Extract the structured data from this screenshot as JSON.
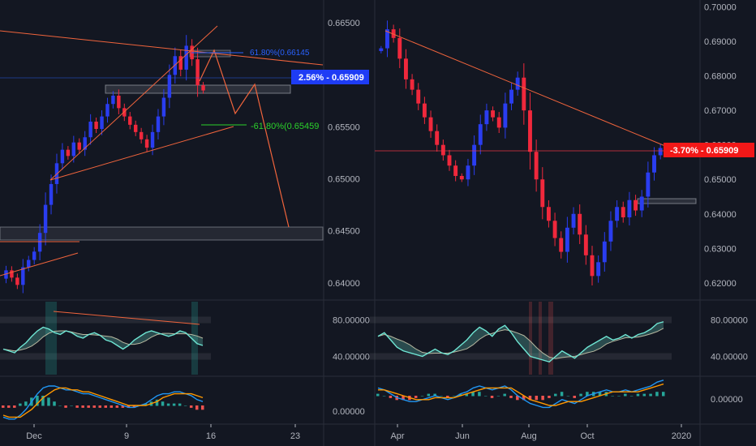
{
  "colors": {
    "background": "#131722",
    "grid": "#2a2e39",
    "axis_text": "#b2b5be",
    "candle_up": "#2a3df0",
    "candle_down": "#f0283c",
    "trendline": "#f0643c",
    "fib_blue": "#2962ff",
    "fib_green": "#2bd12b",
    "badge_blue": "#1e3cf5",
    "badge_red": "#f21818",
    "rsi_fast": "#6fe6d4",
    "rsi_slow": "#b8b8a0",
    "macd_line": "#2196f3",
    "signal_line": "#ff9800",
    "hist_up": "#26a69a",
    "hist_down": "#ef5350"
  },
  "chart_data": [
    {
      "type": "candlestick",
      "panel": "left-price",
      "x_ticks": [
        "Dec",
        "9",
        "16",
        "23"
      ],
      "y_ticks": [
        "0.66500",
        "0.66000",
        "0.65500",
        "0.65000",
        "0.64500",
        "0.64000"
      ],
      "ylim": [
        0.6385,
        0.6672
      ],
      "close_points": [
        [
          0.6412,
          0.6405,
          0.6398,
          0.6415,
          0.6422,
          0.643,
          0.6448,
          0.6475,
          0.6495,
          0.6515,
          0.6528,
          0.6522,
          0.6535,
          0.6528,
          0.654,
          0.6555,
          0.6548,
          0.656,
          0.6572,
          0.658,
          0.6568,
          0.656,
          0.6552,
          0.6545,
          0.6538,
          0.653,
          0.6545,
          0.656,
          0.6578,
          0.66,
          0.6618,
          0.6605,
          0.6628,
          0.6615,
          0.659,
          0.6585
        ]
      ],
      "annotations": [
        {
          "label": "2.56% - 0.65909",
          "style": "badge-blue"
        },
        {
          "label": "-61.80%(0.65459",
          "style": "fib-green"
        },
        {
          "label": "61.80%(0.66145",
          "style": "fib-blue"
        }
      ]
    },
    {
      "type": "candlestick",
      "panel": "right-price",
      "x_ticks": [
        "Apr",
        "Jun",
        "Aug",
        "Oct",
        "2020"
      ],
      "y_ticks": [
        "0.70000",
        "0.69000",
        "0.68000",
        "0.67000",
        "0.66000",
        "0.65000",
        "0.64000",
        "0.63000",
        "0.62000"
      ],
      "ylim": [
        0.6155,
        0.702
      ],
      "close_points": [
        [
          0.688,
          0.6935,
          0.691,
          0.685,
          0.679,
          0.676,
          0.672,
          0.668,
          0.664,
          0.66,
          0.657,
          0.654,
          0.651,
          0.65,
          0.654,
          0.66,
          0.666,
          0.67,
          0.668,
          0.665,
          0.672,
          0.676,
          0.6795,
          0.67,
          0.658,
          0.65,
          0.642,
          0.638,
          0.633,
          0.629,
          0.636,
          0.64,
          0.634,
          0.628,
          0.622,
          0.626,
          0.632,
          0.638,
          0.642,
          0.639,
          0.644,
          0.641,
          0.645,
          0.652,
          0.657,
          0.6591
        ]
      ],
      "annotations": [
        {
          "label": "-3.70% - 0.65909",
          "style": "badge-red"
        }
      ]
    },
    {
      "type": "line",
      "panel": "left-rsi",
      "y_ticks": [
        "80.00000",
        "40.00000"
      ],
      "ylim": [
        20,
        100
      ],
      "series": [
        {
          "values": [
            48,
            46,
            44,
            50,
            55,
            62,
            68,
            72,
            70,
            66,
            64,
            68,
            66,
            62,
            60,
            64,
            66,
            63,
            58,
            56,
            52,
            48,
            52,
            58,
            62,
            66,
            68,
            66,
            64,
            62,
            64,
            68,
            66,
            60,
            54,
            52
          ]
        }
      ]
    },
    {
      "type": "line",
      "panel": "right-rsi",
      "y_ticks": [
        "80.00000",
        "40.00000"
      ],
      "ylim": [
        20,
        100
      ],
      "series": [
        {
          "values": [
            62,
            66,
            58,
            50,
            46,
            44,
            42,
            40,
            44,
            48,
            44,
            42,
            46,
            52,
            58,
            66,
            72,
            68,
            62,
            70,
            74,
            66,
            56,
            48,
            40,
            38,
            36,
            34,
            40,
            46,
            42,
            38,
            44,
            50,
            54,
            58,
            62,
            58,
            60,
            64,
            60,
            64,
            66,
            70,
            76,
            78
          ]
        }
      ]
    },
    {
      "type": "line",
      "panel": "left-macd",
      "y_ticks": [
        "0.00000"
      ],
      "series": [
        {
          "name": "macd",
          "values": [
            -6,
            -7,
            -7,
            -5,
            -2,
            2,
            6,
            9,
            10,
            10,
            9,
            8,
            8,
            7,
            6,
            6,
            5,
            4,
            3,
            2,
            1,
            0,
            -1,
            -1,
            0,
            1,
            3,
            5,
            6,
            6,
            7,
            7,
            6,
            5,
            3,
            2
          ]
        },
        {
          "name": "signal",
          "values": [
            -5,
            -6,
            -6,
            -6,
            -4,
            -2,
            1,
            4,
            6,
            8,
            9,
            9,
            8,
            8,
            7,
            7,
            6,
            5,
            4,
            3,
            2,
            1,
            0,
            0,
            0,
            0,
            1,
            2,
            4,
            5,
            6,
            6,
            6,
            6,
            5,
            4
          ]
        }
      ]
    },
    {
      "type": "line",
      "panel": "right-macd",
      "y_ticks": [
        "0.00000"
      ],
      "series": [
        {
          "name": "macd",
          "values": [
            4,
            3,
            1,
            -1,
            -2,
            -3,
            -3,
            -2,
            -1,
            0,
            -1,
            -2,
            -1,
            1,
            2,
            4,
            5,
            4,
            3,
            4,
            5,
            3,
            0,
            -2,
            -4,
            -5,
            -6,
            -6,
            -4,
            -2,
            -3,
            -4,
            -2,
            0,
            1,
            2,
            3,
            2,
            2,
            3,
            2,
            3,
            4,
            5,
            7,
            8
          ]
        },
        {
          "name": "signal",
          "values": [
            3,
            3,
            2,
            1,
            0,
            -1,
            -2,
            -2,
            -2,
            -1,
            -1,
            -1,
            -1,
            0,
            1,
            2,
            3,
            4,
            4,
            4,
            4,
            4,
            2,
            0,
            -2,
            -3,
            -4,
            -5,
            -5,
            -4,
            -3,
            -3,
            -3,
            -2,
            -1,
            0,
            1,
            2,
            2,
            2,
            2,
            2,
            3,
            4,
            5,
            6
          ]
        }
      ]
    }
  ]
}
